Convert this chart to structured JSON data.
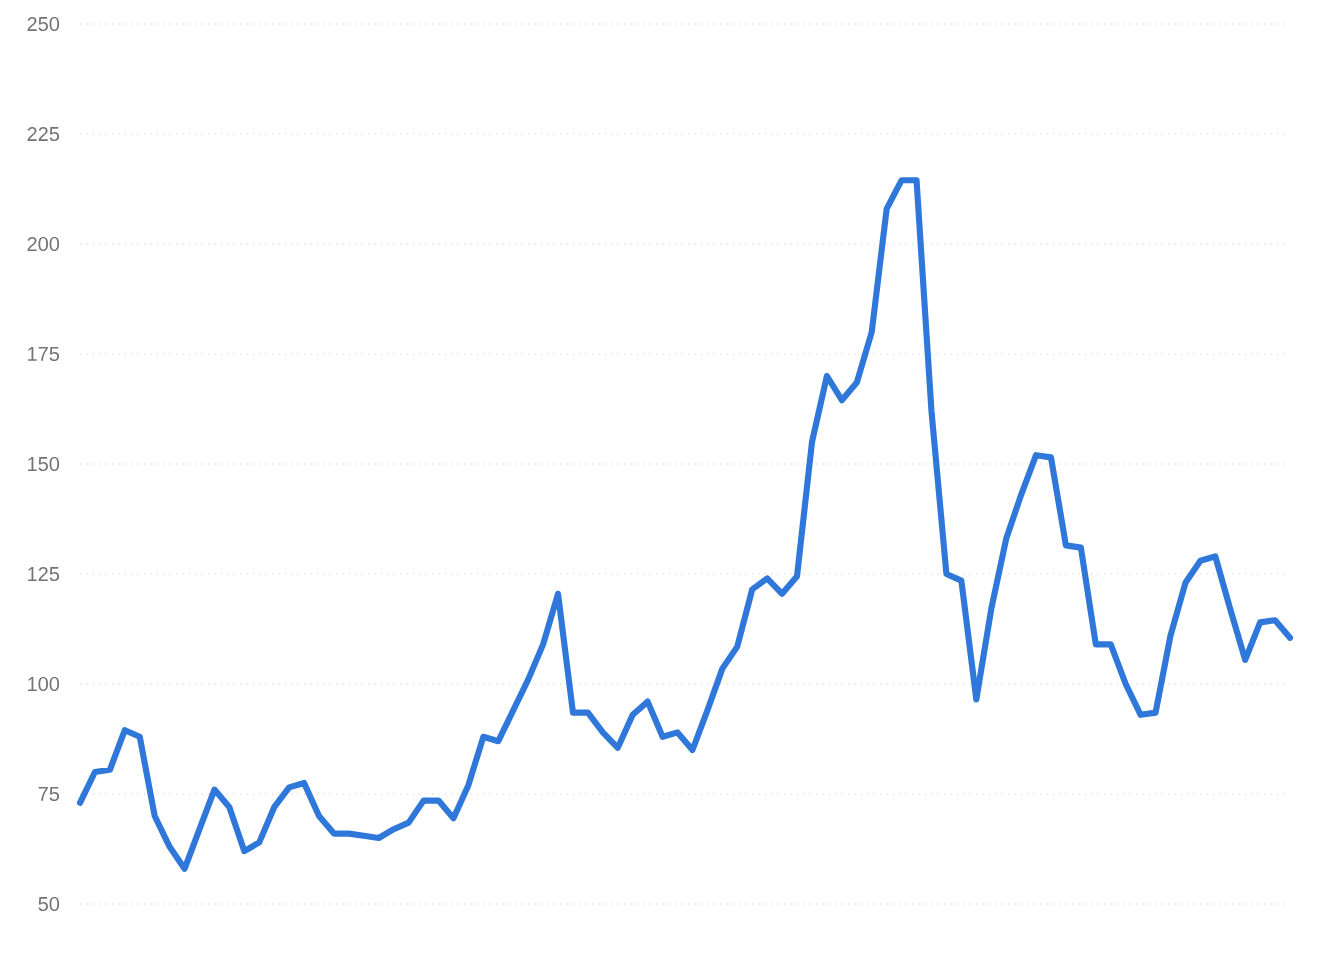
{
  "chart_data": {
    "type": "line",
    "categories": [
      null,
      null,
      null,
      null,
      null,
      null,
      null,
      null,
      null,
      null,
      null,
      null,
      null,
      null,
      null,
      null,
      null,
      null,
      null,
      null,
      null,
      null,
      null,
      null,
      null,
      null,
      null,
      null,
      null,
      null,
      null,
      null,
      null,
      null,
      null,
      null,
      null,
      null,
      null,
      null,
      null,
      null,
      null,
      null,
      null,
      null,
      null,
      null,
      null,
      null,
      null,
      null,
      null,
      null,
      null,
      null,
      null,
      null,
      null,
      null,
      null,
      null,
      null,
      null,
      null,
      null,
      null,
      null,
      null,
      null,
      null,
      null,
      null,
      null,
      null,
      null,
      null,
      null,
      null,
      null,
      null,
      null
    ],
    "series": [
      {
        "color": "#2f78da",
        "values": [
          73,
          80,
          80.5,
          89.5,
          88,
          70,
          63,
          58,
          67,
          76,
          72,
          62,
          64,
          72,
          76.5,
          77.5,
          70,
          66,
          66,
          65.5,
          65,
          67,
          68.5,
          73.5,
          73.5,
          69.5,
          77,
          88,
          87,
          94,
          101,
          109,
          120.5,
          93.5,
          93.5,
          89,
          85.5,
          93,
          96,
          88,
          89,
          85,
          94,
          103.5,
          108.5,
          121.5,
          124,
          120.5,
          124.5,
          155,
          170,
          164.5,
          168.5,
          180,
          208,
          214.5,
          214.5,
          162,
          125,
          123.5,
          96.5,
          117,
          133,
          143,
          152,
          151.5,
          131.5,
          131,
          109,
          109,
          100,
          93,
          93.5,
          111,
          123,
          128,
          129,
          117,
          105.5,
          114,
          114.5,
          110.5
        ]
      }
    ],
    "ylim": [
      50,
      250
    ],
    "yticks": [
      50,
      75,
      100,
      125,
      150,
      175,
      200,
      225,
      250
    ],
    "grid": "y",
    "tick_labels": "y",
    "marker": "none",
    "line_style": "solid"
  }
}
